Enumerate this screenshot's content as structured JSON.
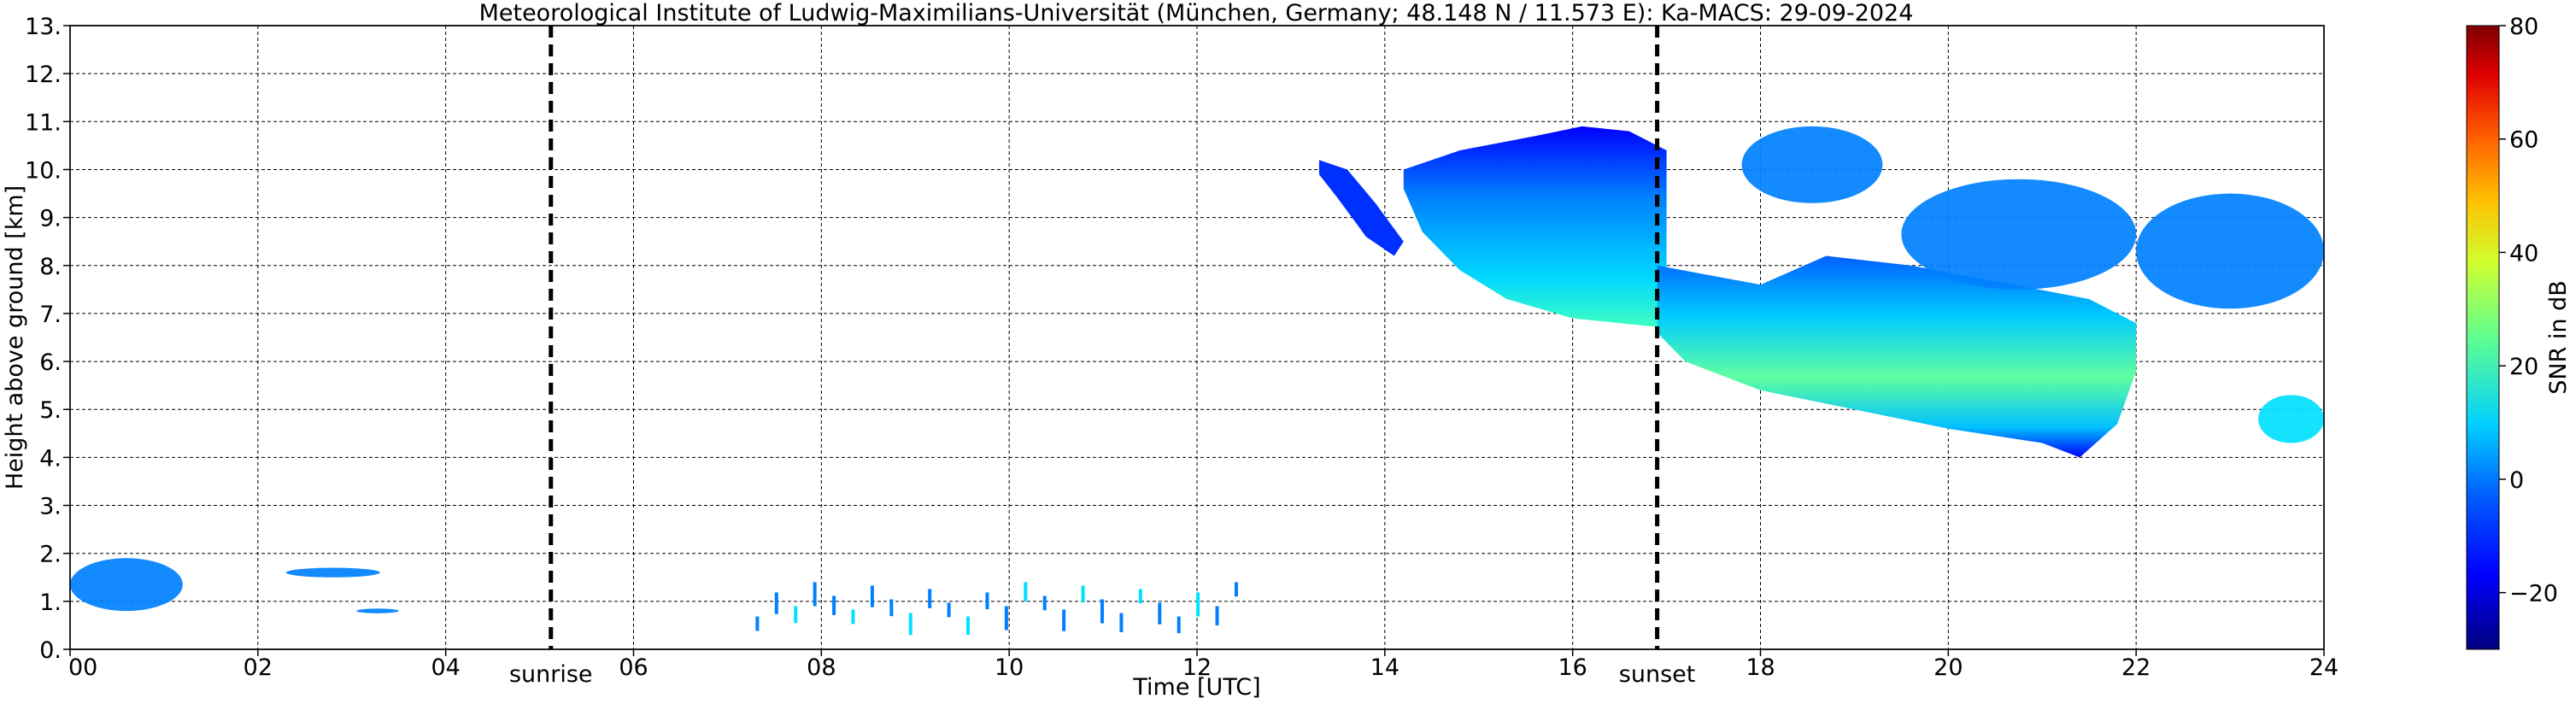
{
  "chart_data": {
    "type": "heatmap",
    "title": "Meteorological Institute of Ludwig-Maximilians-Universität (München, Germany; 48.148 N / 11.573 E):    Ka-MACS: 29-09-2024",
    "xlabel": "Time [UTC]",
    "ylabel": "Height above ground [km]",
    "xlim": [
      0,
      24
    ],
    "ylim": [
      0,
      13
    ],
    "x_ticks": [
      0,
      2,
      4,
      6,
      8,
      10,
      12,
      14,
      16,
      18,
      20,
      22,
      24
    ],
    "x_tick_labels": [
      "00",
      "02",
      "04",
      "06",
      "08",
      "10",
      "12",
      "14",
      "16",
      "18",
      "20",
      "22",
      "24"
    ],
    "y_ticks": [
      0,
      1,
      2,
      3,
      4,
      5,
      6,
      7,
      8,
      9,
      10,
      11,
      12,
      13
    ],
    "y_tick_labels": [
      "0.",
      "1.",
      "2.",
      "3.",
      "4.",
      "5.",
      "6.",
      "7.",
      "8.",
      "9.",
      "10.",
      "11.",
      "12.",
      "13."
    ],
    "grid": true,
    "markers": [
      {
        "label": "sunrise",
        "time_h": 5.12
      },
      {
        "label": "sunset",
        "time_h": 16.9
      }
    ],
    "colorbar": {
      "label": "SNR in dB",
      "range": [
        -30,
        80
      ],
      "ticks": [
        80,
        60,
        40,
        20,
        0,
        -20
      ],
      "tick_labels": [
        "80",
        "60",
        "40",
        "20",
        "0",
        "−20"
      ],
      "colors": [
        "#00007f",
        "#0000ff",
        "#0080ff",
        "#00e5f8",
        "#7dff7a",
        "#e4ff13",
        "#ffa400",
        "#ff3000",
        "#7f0000"
      ]
    },
    "echo_regions": [
      {
        "name": "low-clutter-early",
        "t0": 0.0,
        "t1": 1.2,
        "h0": 0.8,
        "h1": 1.9,
        "snr_db": -5
      },
      {
        "name": "low-cloud-02-03",
        "t0": 2.3,
        "t1": 3.3,
        "h0": 1.5,
        "h1": 1.7,
        "snr_db": -10
      },
      {
        "name": "low-cloud-03",
        "t0": 3.05,
        "t1": 3.5,
        "h0": 0.75,
        "h1": 0.85,
        "snr_db": -15
      },
      {
        "name": "boundary-layer-echoes",
        "t0": 7.3,
        "t1": 12.4,
        "h0": 0.3,
        "h1": 1.4,
        "snr_db": -10
      },
      {
        "name": "cirrus-13-14",
        "t0": 13.3,
        "t1": 14.2,
        "h0": 8.2,
        "h1": 10.2,
        "snr_db": -15
      },
      {
        "name": "main-ice-cloud",
        "t0": 14.2,
        "t1": 17.0,
        "h0": 6.4,
        "h1": 10.9,
        "snr_db": 5
      },
      {
        "name": "descending-precip-band",
        "t0": 16.9,
        "t1": 22.0,
        "h0": 4.0,
        "h1": 8.2,
        "snr_db": 15
      },
      {
        "name": "upper-cloud-18-19",
        "t0": 17.8,
        "t1": 19.3,
        "h0": 9.3,
        "h1": 10.9,
        "snr_db": -5
      },
      {
        "name": "upper-cloud-20-22",
        "t0": 19.5,
        "t1": 22.0,
        "h0": 7.5,
        "h1": 9.8,
        "snr_db": -10
      },
      {
        "name": "upper-cloud-22-24",
        "t0": 22.0,
        "t1": 24.0,
        "h0": 7.1,
        "h1": 9.5,
        "snr_db": -5
      },
      {
        "name": "mid-cloud-23-24",
        "t0": 23.3,
        "t1": 24.0,
        "h0": 4.3,
        "h1": 5.3,
        "snr_db": 5
      }
    ]
  }
}
